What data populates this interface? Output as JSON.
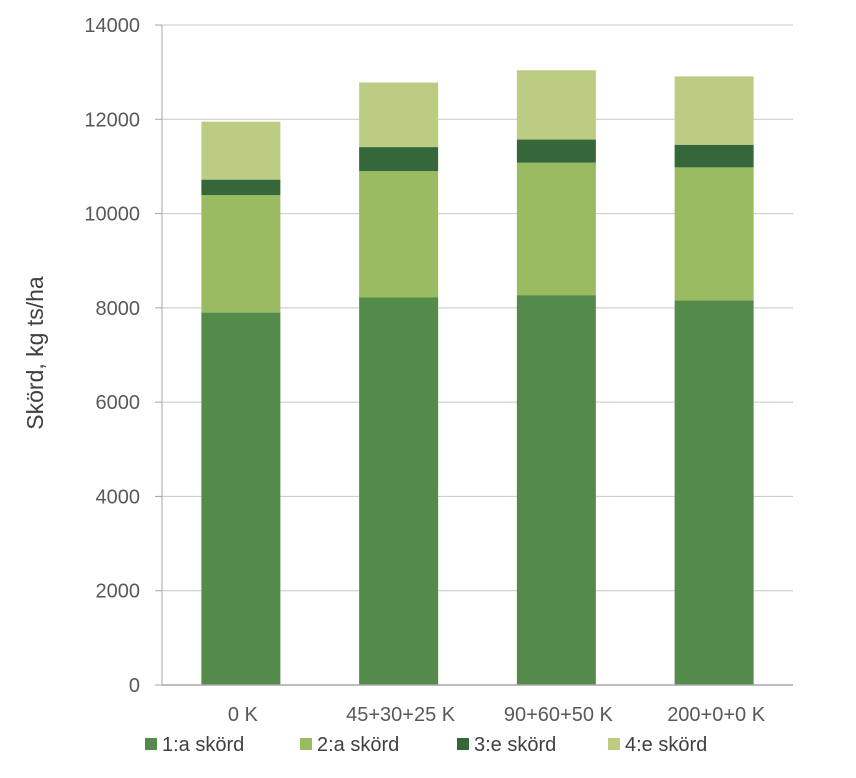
{
  "chart_data": {
    "type": "bar",
    "stacked": true,
    "categories": [
      "0 K",
      "45+30+25 K",
      "90+60+50 K",
      "200+0+0 K"
    ],
    "series": [
      {
        "name": "1:a skörd",
        "color": "#558b4a",
        "values": [
          7900,
          8220,
          8270,
          8160
        ]
      },
      {
        "name": "2:a skörd",
        "color": "#9bbb62",
        "values": [
          2490,
          2680,
          2810,
          2820
        ]
      },
      {
        "name": "3:e skörd",
        "color": "#35673a",
        "values": [
          330,
          510,
          490,
          480
        ]
      },
      {
        "name": "4:e skörd",
        "color": "#bccc82",
        "values": [
          1230,
          1370,
          1470,
          1450
        ]
      }
    ],
    "title": "",
    "xlabel": "",
    "ylabel": "Skörd, kg ts/ha",
    "ylim": [
      0,
      14000
    ],
    "yticks": [
      0,
      2000,
      4000,
      6000,
      8000,
      10000,
      12000,
      14000
    ],
    "grid": true,
    "legend_position": "bottom"
  }
}
